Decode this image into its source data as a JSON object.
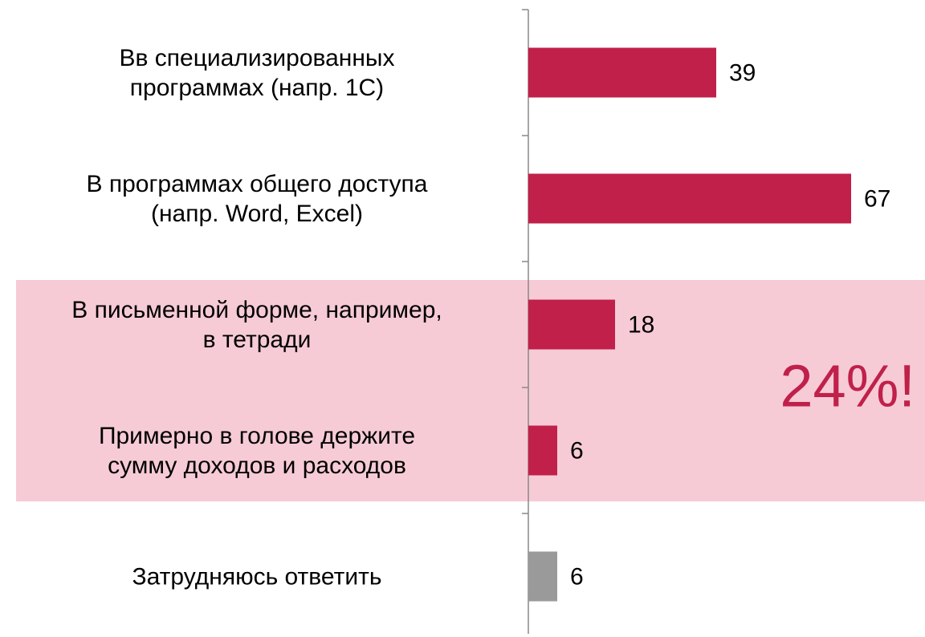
{
  "chart_data": {
    "type": "barh",
    "categories": [
      "Вв специализированных\nпрограммах (напр. 1С)",
      "В программах общего доступа\n(напр.  Word, Excel)",
      "В письменной форме, например,\nв тетради",
      "Примерно в голове держите\nсумму доходов и расходов",
      "Затрудняюсь ответить"
    ],
    "values": [
      39,
      67,
      18,
      6,
      6
    ],
    "colors": [
      "#c0204a",
      "#c0204a",
      "#c0204a",
      "#c0204a",
      "#9a9a9a"
    ],
    "annotation": "24%!"
  }
}
